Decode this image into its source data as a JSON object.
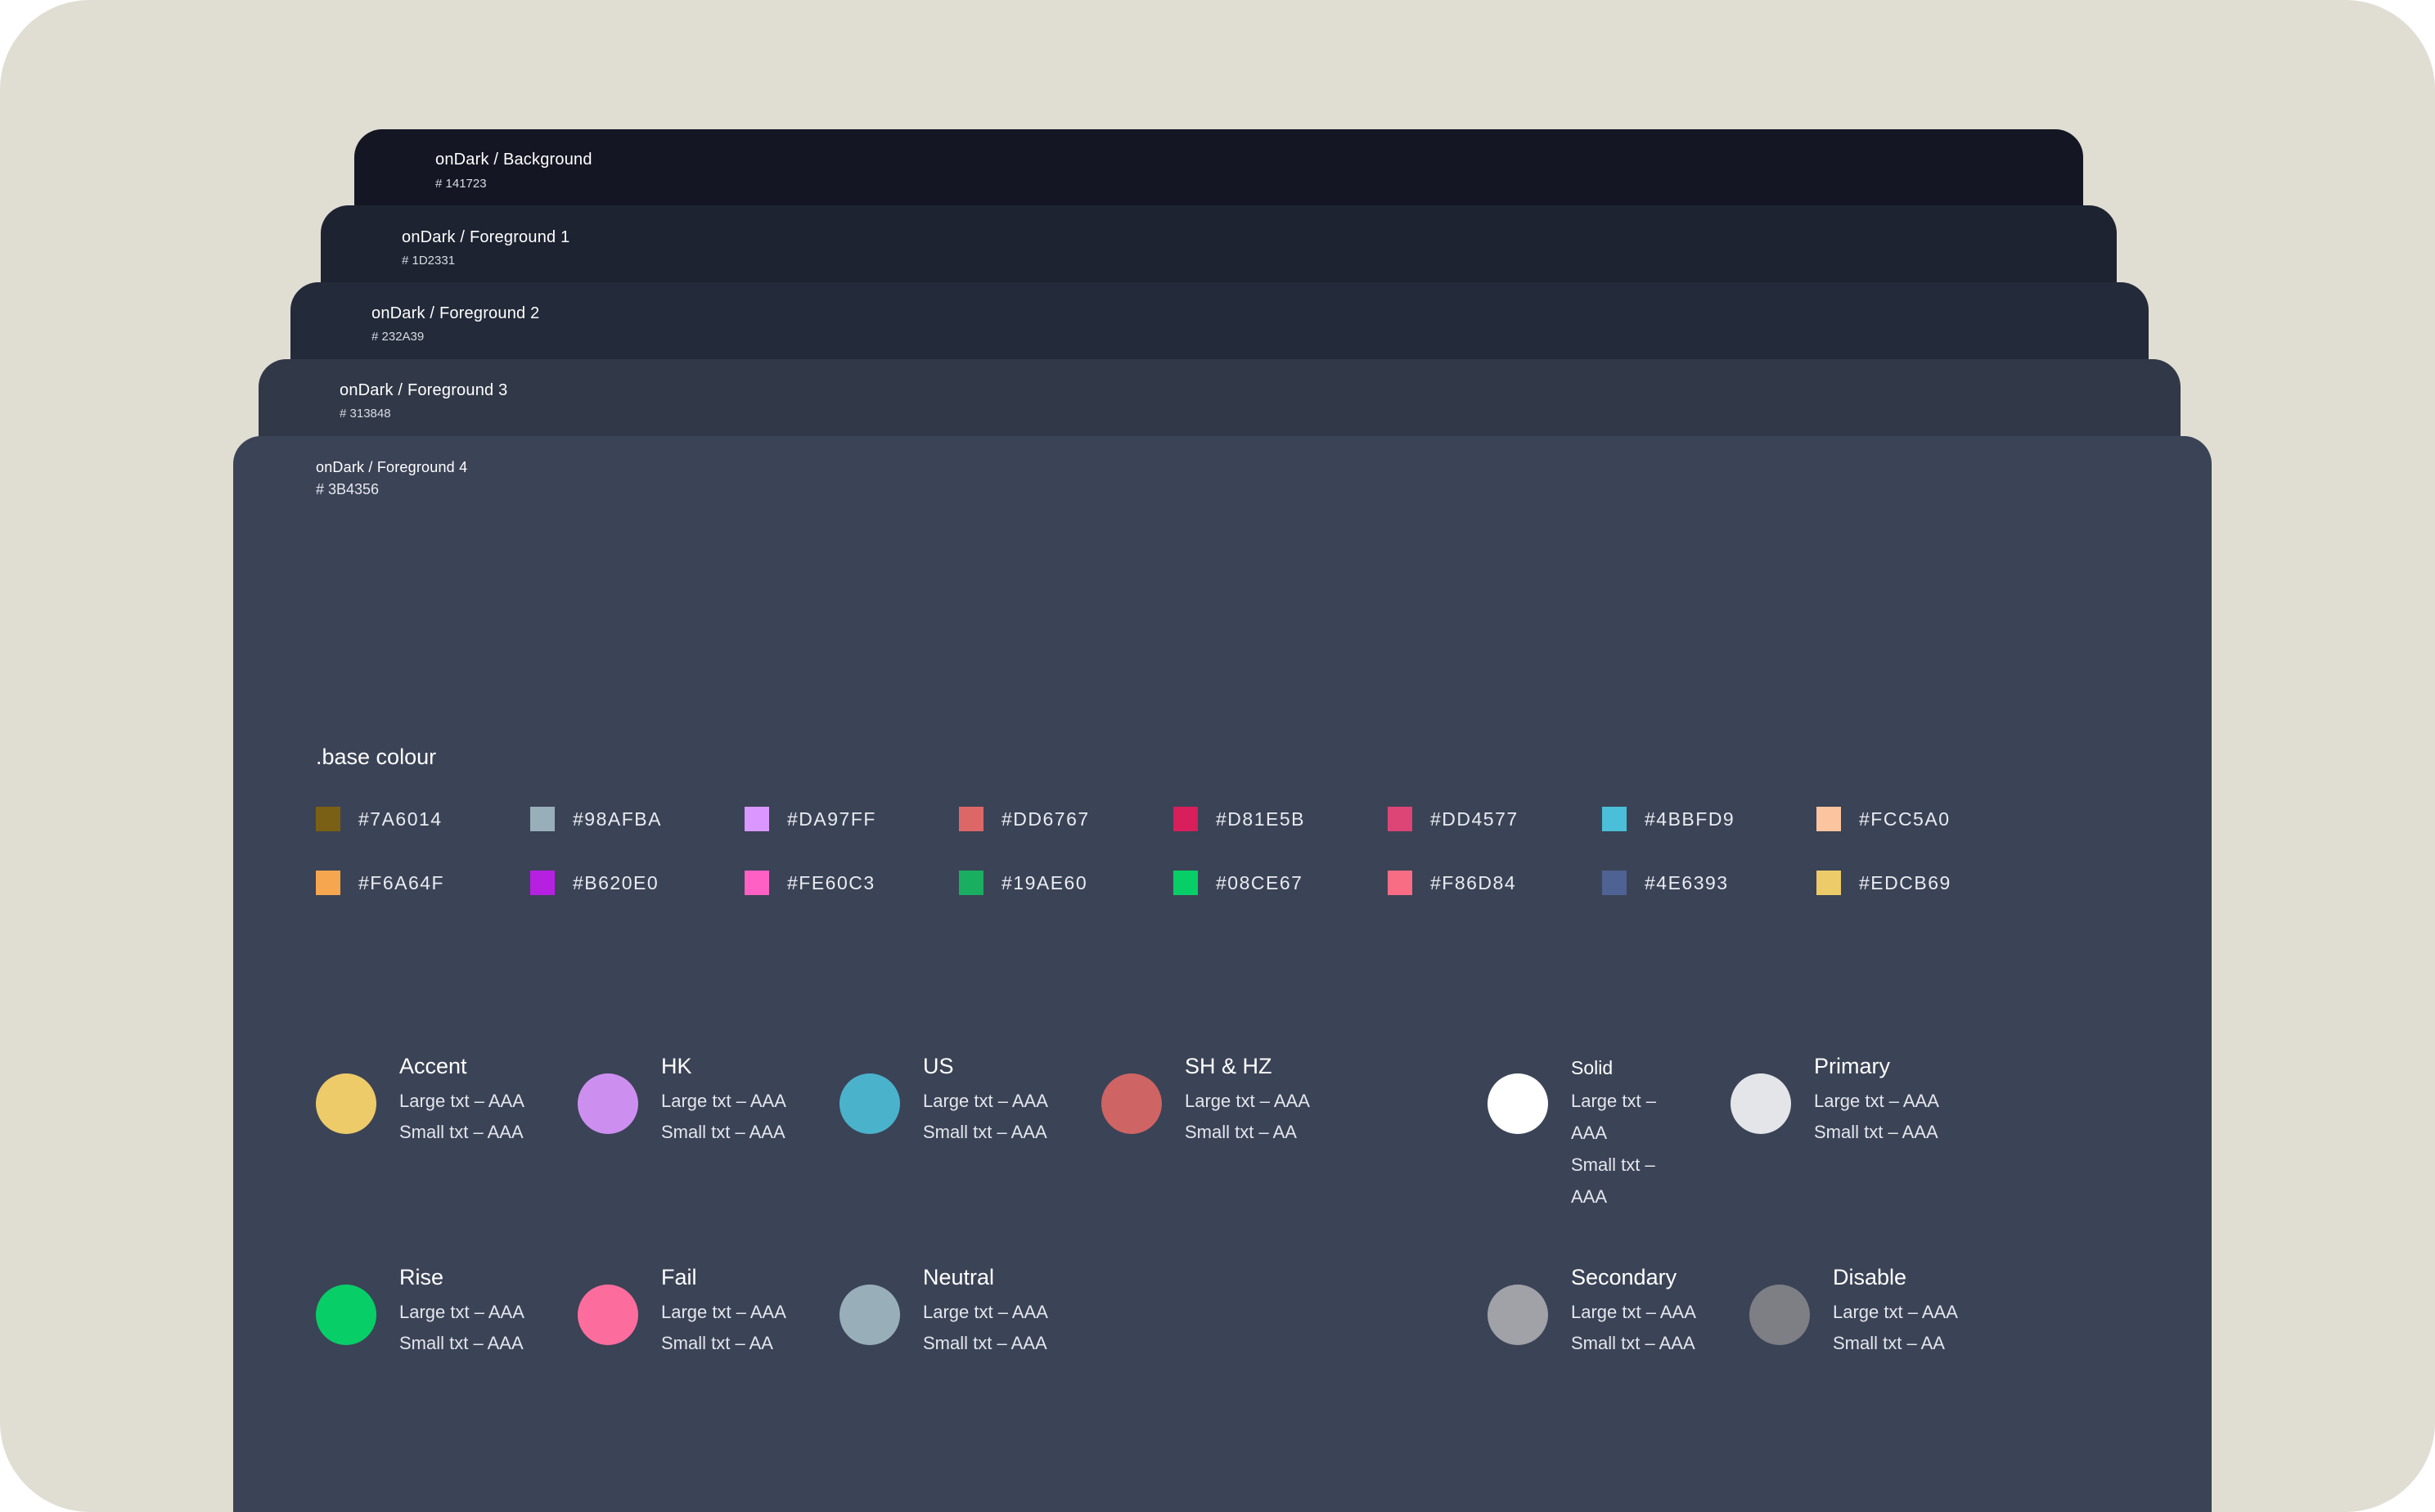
{
  "layers": [
    {
      "name": "onDark / Background",
      "hex": "# 141723",
      "color": "#141723"
    },
    {
      "name": "onDark / Foreground 1",
      "hex": "# 1D2331",
      "color": "#1D2331"
    },
    {
      "name": "onDark / Foreground 2",
      "hex": "# 232A39",
      "color": "#232A39"
    },
    {
      "name": "onDark / Foreground 3",
      "hex": "# 313848",
      "color": "#313848"
    },
    {
      "name": "onDark / Foreground 4",
      "hex": "# 3B4356",
      "color": "#3B4356"
    }
  ],
  "base_colour": {
    "title": ".base colour",
    "swatches": [
      {
        "code": "#7A6014",
        "color": "#7A6014"
      },
      {
        "code": "#98AFBA",
        "color": "#98AFBA"
      },
      {
        "code": "#DA97FF",
        "color": "#DA97FF"
      },
      {
        "code": "#DD6767",
        "color": "#DD6767"
      },
      {
        "code": "#D81E5B",
        "color": "#D81E5B"
      },
      {
        "code": "#DD4577",
        "color": "#DD4577"
      },
      {
        "code": "#4BBFD9",
        "color": "#4BBFD9"
      },
      {
        "code": "#FCC5A0",
        "color": "#FCC5A0"
      },
      {
        "code": "#F6A64F",
        "color": "#F6A64F"
      },
      {
        "code": "#B620E0",
        "color": "#B620E0"
      },
      {
        "code": "#FE60C3",
        "color": "#FE60C3"
      },
      {
        "code": "#19AE60",
        "color": "#19AE60"
      },
      {
        "code": "#08CE67",
        "color": "#08CE67"
      },
      {
        "code": "#F86D84",
        "color": "#F86D84"
      },
      {
        "code": "#4E6393",
        "color": "#4E6393"
      },
      {
        "code": "#EDCB69",
        "color": "#EDCB69"
      }
    ]
  },
  "roles": [
    {
      "name": "Accent",
      "large": "Large txt – AAA",
      "small": "Small txt – AAA",
      "color": "#EDCB69"
    },
    {
      "name": "HK",
      "large": "Large txt – AAA",
      "small": "Small txt – AAA",
      "color": "#CD8FEF"
    },
    {
      "name": "US",
      "large": "Large txt – AAA",
      "small": "Small txt – AAA",
      "color": "#4BB2CC"
    },
    {
      "name": "SH & HZ",
      "large": "Large txt – AAA",
      "small": "Small txt – AA",
      "color": "#CF6464"
    },
    {
      "name": "Solid",
      "large": "Large txt – AAA",
      "small": "Small txt – AAA",
      "color": "#FFFFFF"
    },
    {
      "name": "Primary",
      "large": "Large txt – AAA",
      "small": "Small txt – AAA",
      "color": "#E4E5E8"
    },
    {
      "name": "Rise",
      "large": "Large txt – AAA",
      "small": "Small txt – AAA",
      "color": "#08CE67"
    },
    {
      "name": "Fail",
      "large": "Large txt – AAA",
      "small": "Small txt – AA",
      "color": "#FC6D9E"
    },
    {
      "name": "Neutral",
      "large": "Large txt – AAA",
      "small": "Small txt – AAA",
      "color": "#98AFBA"
    },
    {
      "name": "Secondary",
      "large": "Large txt – AAA",
      "small": "Small txt – AAA",
      "color": "#A0A2A7"
    },
    {
      "name": "Disable",
      "large": "Large txt – AAA",
      "small": "Small txt – AA",
      "color": "#7D7F85"
    }
  ]
}
